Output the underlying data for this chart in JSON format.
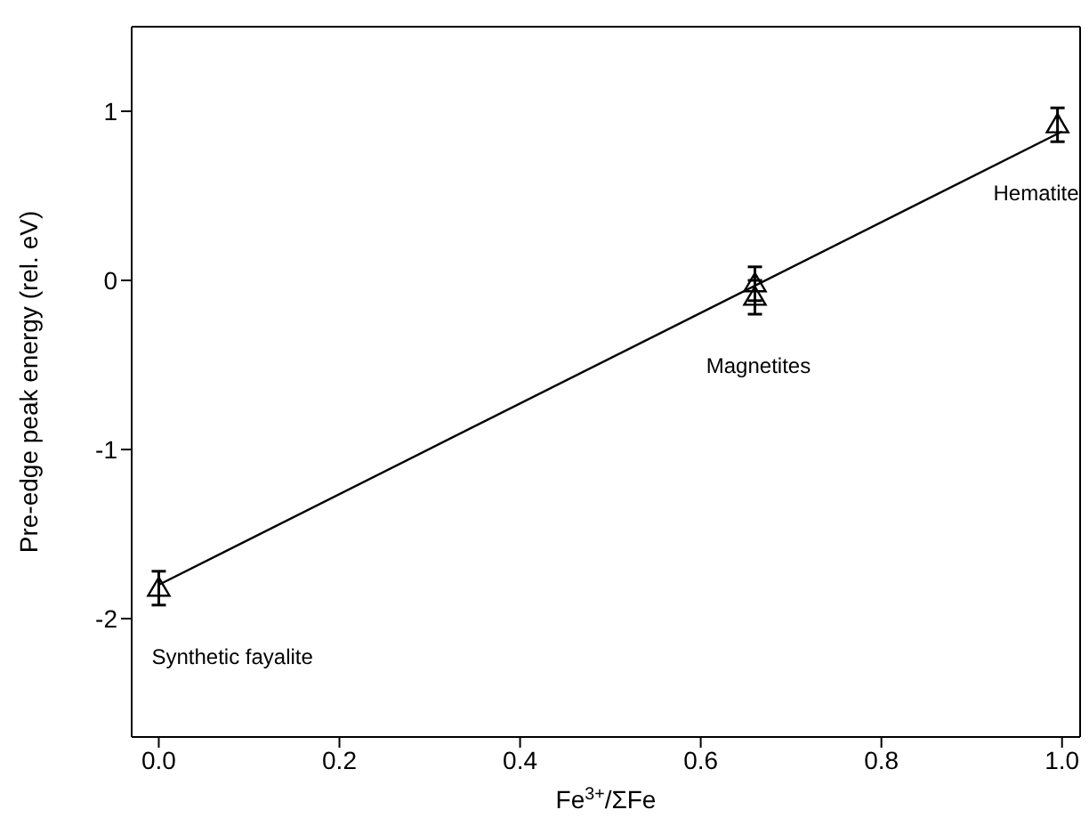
{
  "chart_data": {
    "type": "scatter",
    "xlabel": "Fe$^{3+}$/ΣFe",
    "ylabel": "Pre-edge peak energy (rel. eV)",
    "x": [
      0,
      0.66,
      0.66,
      0.995
    ],
    "values": [
      -1.82,
      -0.02,
      -0.1,
      0.92
    ],
    "errors": [
      0.1,
      0.1,
      0.1,
      0.1
    ],
    "color": "#000000",
    "marker": "triangle",
    "series": [
      {
        "type": "line",
        "x": [
          0,
          1
        ],
        "values": [
          -1.8,
          0.88
        ],
        "color": "#000000",
        "marker": "none"
      }
    ],
    "xlim": [
      -0.03,
      1.02
    ],
    "xticks": [
      {
        "value": 0,
        "label": "0.0"
      },
      {
        "value": 0.2,
        "label": "0.2"
      },
      {
        "value": 0.4,
        "label": "0.4"
      },
      {
        "value": 0.6,
        "label": "0.6"
      },
      {
        "value": 0.8,
        "label": "0.8"
      },
      {
        "value": 1,
        "label": "1.0"
      }
    ],
    "ylim": [
      -2.7,
      1.5
    ],
    "yticks": [
      -2,
      -1,
      0,
      1
    ],
    "annotations": [
      {
        "text": "Synthetic fayalite",
        "x": 0,
        "y": -1.82
      },
      {
        "text": "Magnetites",
        "x": 0.66,
        "y": -0.1
      },
      {
        "text": "Hematite",
        "x": 0.995,
        "y": 0.92
      }
    ]
  }
}
